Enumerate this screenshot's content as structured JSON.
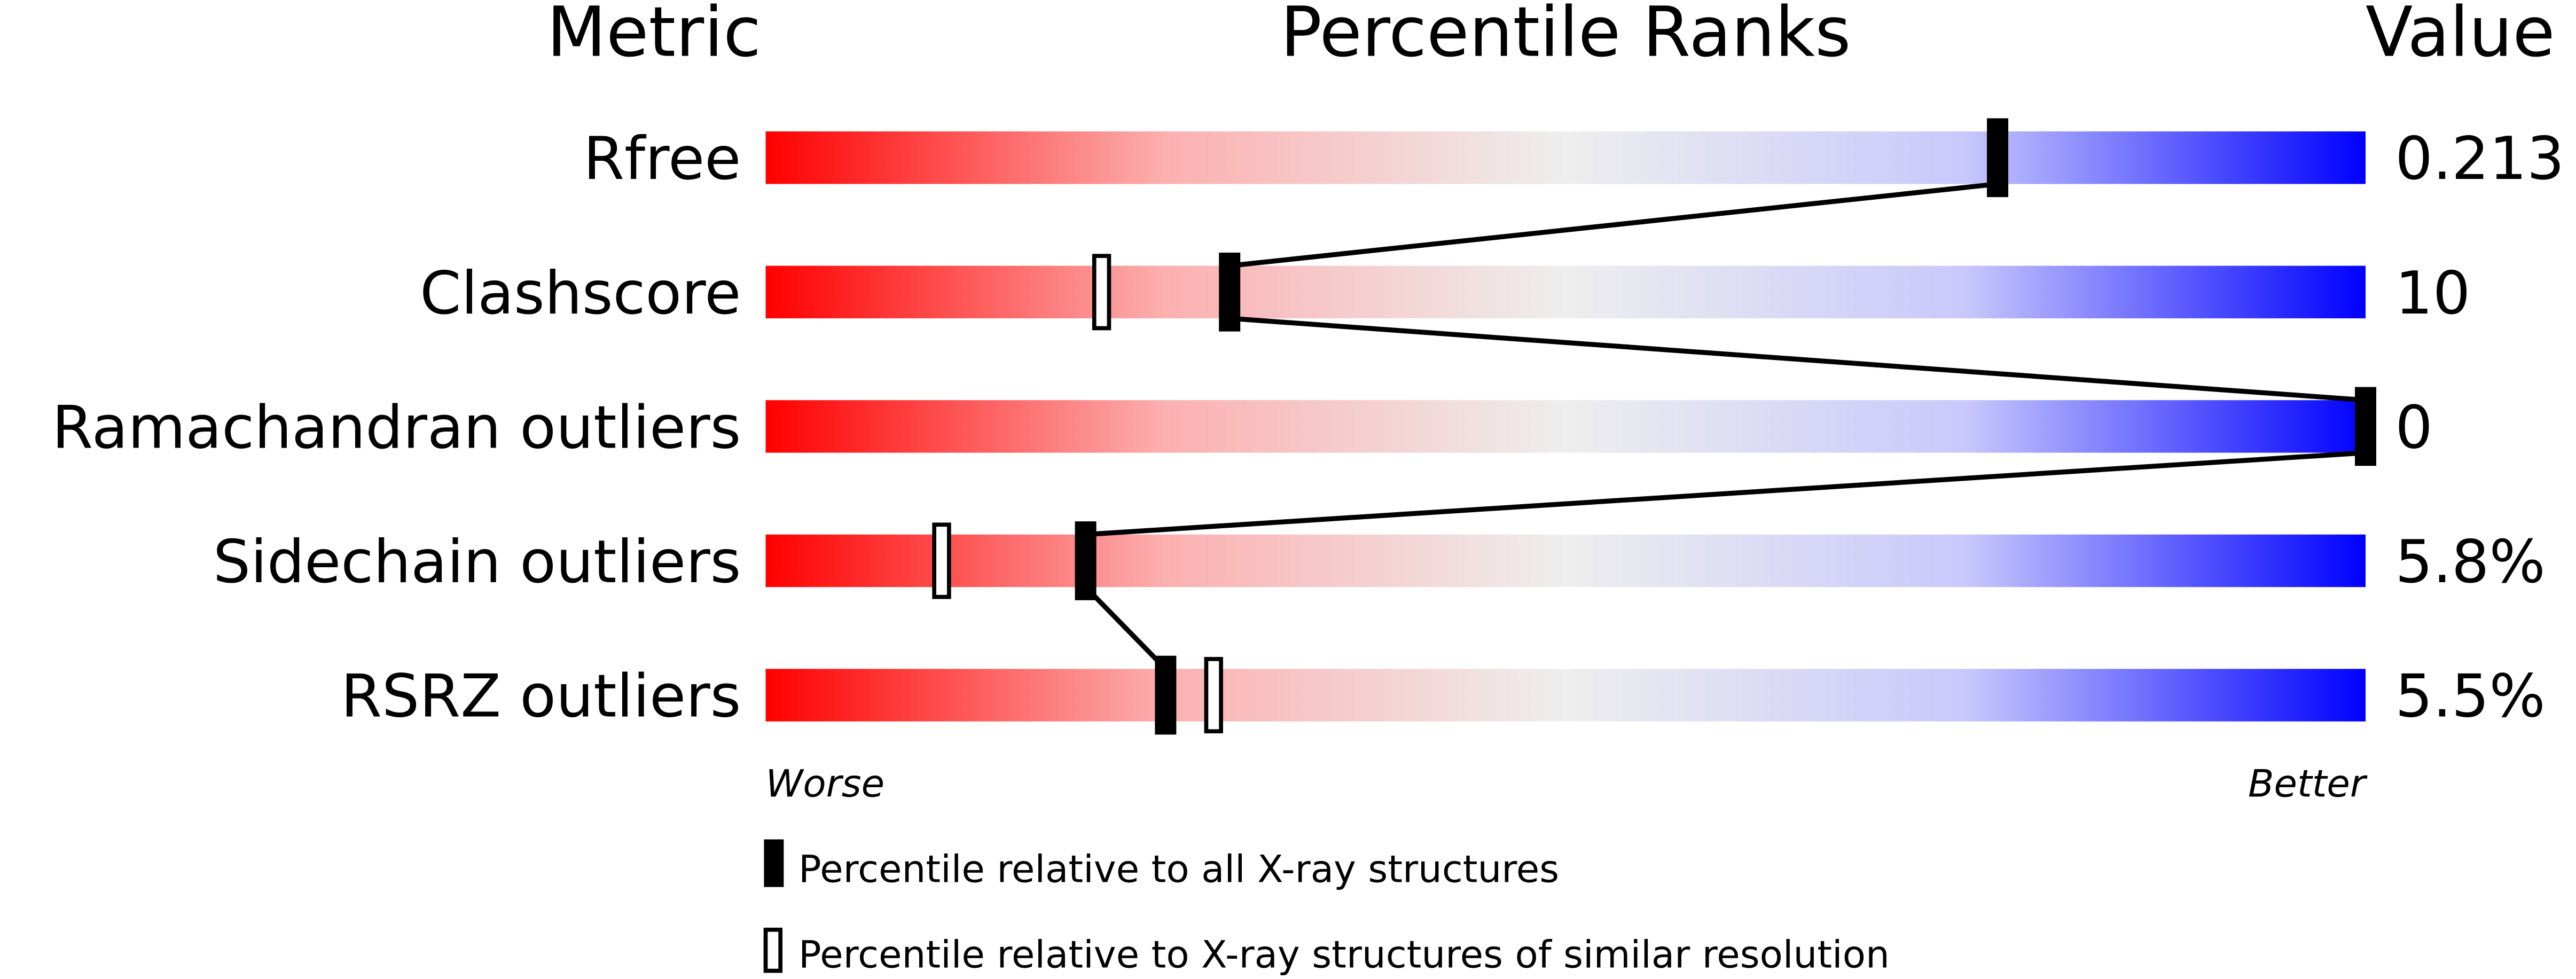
{
  "chart_data": {
    "type": "percentile-slider",
    "headers": {
      "metric": "Metric",
      "ranks": "Percentile Ranks",
      "value": "Value"
    },
    "axis": {
      "min": 0,
      "max": 100,
      "left_label": "Worse",
      "right_label": "Better"
    },
    "colors": {
      "worse": "#ff0000",
      "middle": "#eeeeee",
      "better": "#0000ff",
      "marker": "#000000"
    },
    "rows": [
      {
        "metric": "Rfree",
        "value": "0.213",
        "percentile_all": 77,
        "percentile_similar": null
      },
      {
        "metric": "Clashscore",
        "value": "10",
        "percentile_all": 29,
        "percentile_similar": 21
      },
      {
        "metric": "Ramachandran outliers",
        "value": "0",
        "percentile_all": 100,
        "percentile_similar": null
      },
      {
        "metric": "Sidechain outliers",
        "value": "5.8%",
        "percentile_all": 20,
        "percentile_similar": 11
      },
      {
        "metric": "RSRZ outliers",
        "value": "5.5%",
        "percentile_all": 25,
        "percentile_similar": 28
      }
    ],
    "legend": {
      "all": "Percentile relative to all X-ray structures",
      "similar": "Percentile relative to X-ray structures of similar resolution"
    }
  }
}
